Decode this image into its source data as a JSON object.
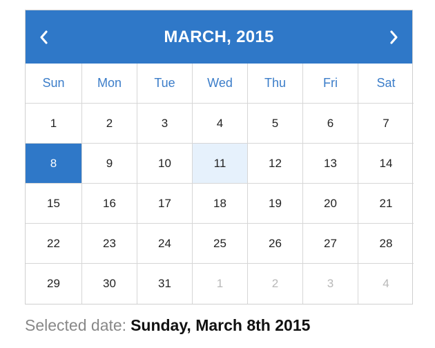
{
  "calendar": {
    "title": "MARCH, 2015",
    "prev_icon": "chevron-left-icon",
    "next_icon": "chevron-right-icon",
    "weekdays": [
      "Sun",
      "Mon",
      "Tue",
      "Wed",
      "Thu",
      "Fri",
      "Sat"
    ],
    "weeks": [
      [
        "1",
        "2",
        "3",
        "4",
        "5",
        "6",
        "7"
      ],
      [
        "8",
        "9",
        "10",
        "11",
        "12",
        "13",
        "14"
      ],
      [
        "15",
        "16",
        "17",
        "18",
        "19",
        "20",
        "21"
      ],
      [
        "22",
        "23",
        "24",
        "25",
        "26",
        "27",
        "28"
      ],
      [
        "29",
        "30",
        "31",
        "1",
        "2",
        "3",
        "4"
      ]
    ],
    "selected_day": "8",
    "highlighted_day": "11",
    "colors": {
      "accent": "#2f78c8",
      "highlight": "#e6f1fc",
      "muted": "#b8b8b8"
    }
  },
  "footer": {
    "label": "Selected date:",
    "value": "Sunday, March 8th 2015"
  }
}
